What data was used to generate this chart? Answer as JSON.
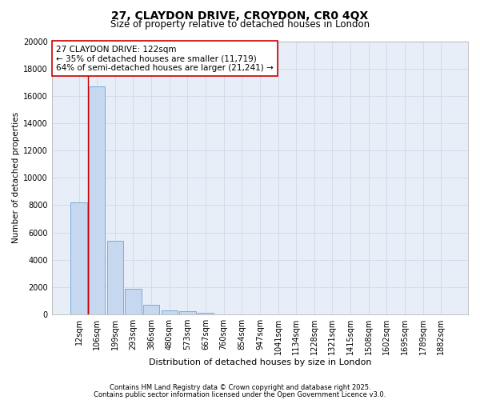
{
  "title1": "27, CLAYDON DRIVE, CROYDON, CR0 4QX",
  "title2": "Size of property relative to detached houses in London",
  "xlabel": "Distribution of detached houses by size in London",
  "ylabel": "Number of detached properties",
  "categories": [
    "12sqm",
    "106sqm",
    "199sqm",
    "293sqm",
    "386sqm",
    "480sqm",
    "573sqm",
    "667sqm",
    "760sqm",
    "854sqm",
    "947sqm",
    "1041sqm",
    "1134sqm",
    "1228sqm",
    "1321sqm",
    "1415sqm",
    "1508sqm",
    "1602sqm",
    "1695sqm",
    "1789sqm",
    "1882sqm"
  ],
  "bar_values": [
    8200,
    16700,
    5400,
    1900,
    700,
    300,
    220,
    120,
    0,
    0,
    0,
    0,
    0,
    0,
    0,
    0,
    0,
    0,
    0,
    0,
    0
  ],
  "bar_color": "#c5d8f0",
  "bar_edge_color": "#7aacdc",
  "background_color": "#e8eef8",
  "grid_color": "#d0d8e8",
  "annotation_box_color": "#cc0000",
  "annotation_line1": "27 CLAYDON DRIVE: 122sqm",
  "annotation_line2": "← 35% of detached houses are smaller (11,719)",
  "annotation_line3": "64% of semi-detached houses are larger (21,241) →",
  "red_line_x": 0.5,
  "red_line_color": "#cc0000",
  "ylim": [
    0,
    20000
  ],
  "yticks": [
    0,
    2000,
    4000,
    6000,
    8000,
    10000,
    12000,
    14000,
    16000,
    18000,
    20000
  ],
  "footer_line1": "Contains HM Land Registry data © Crown copyright and database right 2025.",
  "footer_line2": "Contains public sector information licensed under the Open Government Licence v3.0.",
  "title1_fontsize": 10,
  "title2_fontsize": 8.5,
  "annotation_fontsize": 7.5,
  "footer_fontsize": 6,
  "axis_label_fontsize": 8,
  "ylabel_fontsize": 7.5,
  "tick_fontsize": 7
}
